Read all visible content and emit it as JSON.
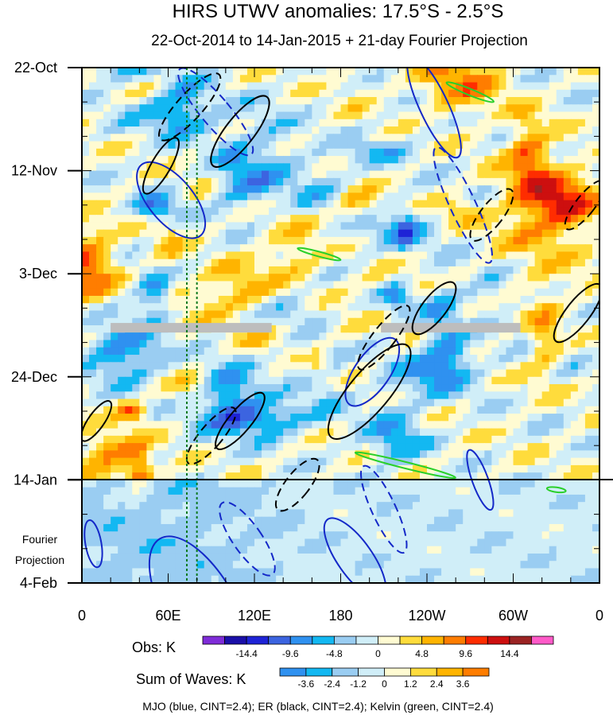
{
  "chart_data": {
    "type": "heatmap",
    "title": "HIRS UTWV anomalies: 17.5°S - 2.5°S",
    "subtitle": "22-Oct-2014 to 14-Jan-2015 + 21-day Fourier Projection",
    "x_ticks": [
      {
        "label": "0",
        "lon": 0
      },
      {
        "label": "60E",
        "lon": 60
      },
      {
        "label": "120E",
        "lon": 120
      },
      {
        "label": "180",
        "lon": 180
      },
      {
        "label": "120W",
        "lon": 240
      },
      {
        "label": "60W",
        "lon": 300
      },
      {
        "label": "0",
        "lon": 360
      }
    ],
    "xlim": [
      0,
      360
    ],
    "y_ticks": [
      {
        "label": "22-Oct",
        "day": 0
      },
      {
        "label": "12-Nov",
        "day": 21
      },
      {
        "label": "3-Dec",
        "day": 42
      },
      {
        "label": "24-Dec",
        "day": 63
      },
      {
        "label": "14-Jan",
        "day": 84
      },
      {
        "label": "4-Feb",
        "day": 105
      }
    ],
    "ylim_days": [
      0,
      105
    ],
    "observation_end_day": 84,
    "projection_label": "Fourier Projection",
    "projection_label_lines": [
      "Fourier",
      "Projection"
    ],
    "missing_data": [
      {
        "lon_start": 20,
        "lon_end": 132,
        "day": 53
      },
      {
        "lon_start": 208,
        "lon_end": 305,
        "day": 53
      }
    ],
    "reference_lines_lon": [
      73,
      80
    ],
    "obs_legend": {
      "label": "Obs: K",
      "colors": [
        "#7f2cd8",
        "#1a0fa8",
        "#1e23d6",
        "#3c64e0",
        "#2f91f0",
        "#13b8f2",
        "#9acdf2",
        "#d0eef8",
        "#fffbd2",
        "#ffdc3c",
        "#ffb400",
        "#ff7d00",
        "#ff2d00",
        "#cd0f0f",
        "#9b2323",
        "#ff5ac8"
      ],
      "ticks": [
        "-14.4",
        "-9.6",
        "-4.8",
        "0",
        "4.8",
        "9.6",
        "14.4"
      ]
    },
    "waves_legend": {
      "label": "Sum of Waves: K",
      "colors": [
        "#2f91f0",
        "#13b8f2",
        "#9acdf2",
        "#d0eef8",
        "#fffbd2",
        "#ffdc3c",
        "#ffb400",
        "#ff7d00"
      ],
      "ticks": [
        "-3.6",
        "-2.4",
        "-1.2",
        "0",
        "1.2",
        "2.4",
        "3.6"
      ]
    },
    "footnote": "MJO (blue, CINT=2.4); ER (black, CINT=2.4); Kelvin (green, CINT=2.4)",
    "series": [
      {
        "name": "MJO",
        "color": "#1428c8",
        "cint": 2.4
      },
      {
        "name": "ER",
        "color": "#000000",
        "cint": 2.4
      },
      {
        "name": "Kelvin",
        "color": "#2ad02a",
        "cint": 2.4
      }
    ]
  }
}
